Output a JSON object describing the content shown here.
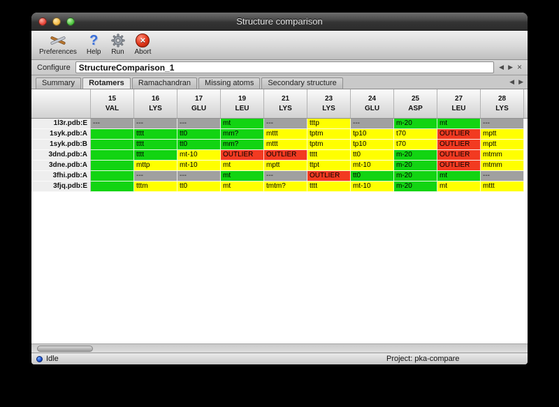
{
  "window": {
    "title": "Structure comparison"
  },
  "glyphs": {
    "help": "?",
    "abort": "×",
    "prev": "◀",
    "next": "▶",
    "close": "×"
  },
  "toolbar": {
    "items": [
      {
        "label": "Preferences",
        "icon": "preferences-tools-icon"
      },
      {
        "label": "Help",
        "icon": "help-question-icon"
      },
      {
        "label": "Run",
        "icon": "run-gear-icon"
      },
      {
        "label": "Abort",
        "icon": "abort-icon"
      }
    ]
  },
  "configure": {
    "label": "Configure",
    "value": "StructureComparison_1"
  },
  "tabs": {
    "items": [
      {
        "label": "Summary",
        "active": false
      },
      {
        "label": "Rotamers",
        "active": true
      },
      {
        "label": "Ramachandran",
        "active": false
      },
      {
        "label": "Missing atoms",
        "active": false
      },
      {
        "label": "Secondary structure",
        "active": false
      }
    ]
  },
  "table": {
    "columns": [
      {
        "num": "15",
        "res": "VAL"
      },
      {
        "num": "16",
        "res": "LYS"
      },
      {
        "num": "17",
        "res": "GLU"
      },
      {
        "num": "19",
        "res": "LEU"
      },
      {
        "num": "21",
        "res": "LYS"
      },
      {
        "num": "23",
        "res": "LYS"
      },
      {
        "num": "24",
        "res": "GLU"
      },
      {
        "num": "25",
        "res": "ASP"
      },
      {
        "num": "27",
        "res": "LEU"
      },
      {
        "num": "28",
        "res": "LYS"
      }
    ],
    "rows": [
      {
        "label": "1l3r.pdb:E",
        "cells": [
          {
            "text": "---",
            "color": "gray"
          },
          {
            "text": "---",
            "color": "gray"
          },
          {
            "text": "---",
            "color": "gray"
          },
          {
            "text": "mt",
            "color": "green"
          },
          {
            "text": "---",
            "color": "gray"
          },
          {
            "text": "tttp",
            "color": "yellow"
          },
          {
            "text": "---",
            "color": "gray"
          },
          {
            "text": "m-20",
            "color": "green"
          },
          {
            "text": "mt",
            "color": "green"
          },
          {
            "text": "---",
            "color": "gray"
          }
        ]
      },
      {
        "label": "1syk.pdb:A",
        "cells": [
          {
            "text": "",
            "color": "green"
          },
          {
            "text": "tttt",
            "color": "green"
          },
          {
            "text": "tt0",
            "color": "green"
          },
          {
            "text": "mm?",
            "color": "green"
          },
          {
            "text": "mttt",
            "color": "yellow"
          },
          {
            "text": "tptm",
            "color": "yellow"
          },
          {
            "text": "tp10",
            "color": "yellow"
          },
          {
            "text": "t70",
            "color": "yellow"
          },
          {
            "text": "OUTLIER",
            "color": "red"
          },
          {
            "text": "mptt",
            "color": "yellow"
          }
        ]
      },
      {
        "label": "1syk.pdb:B",
        "cells": [
          {
            "text": "",
            "color": "green"
          },
          {
            "text": "tttt",
            "color": "green"
          },
          {
            "text": "tt0",
            "color": "green"
          },
          {
            "text": "mm?",
            "color": "green"
          },
          {
            "text": "mttt",
            "color": "yellow"
          },
          {
            "text": "tptm",
            "color": "yellow"
          },
          {
            "text": "tp10",
            "color": "yellow"
          },
          {
            "text": "t70",
            "color": "yellow"
          },
          {
            "text": "OUTLIER",
            "color": "red"
          },
          {
            "text": "mptt",
            "color": "yellow"
          }
        ]
      },
      {
        "label": "3dnd.pdb:A",
        "cells": [
          {
            "text": "",
            "color": "green"
          },
          {
            "text": "tttt",
            "color": "green"
          },
          {
            "text": "mt-10",
            "color": "yellow"
          },
          {
            "text": "OUTLIER",
            "color": "red"
          },
          {
            "text": "OUTLIER",
            "color": "red"
          },
          {
            "text": "tttt",
            "color": "yellow"
          },
          {
            "text": "tt0",
            "color": "yellow"
          },
          {
            "text": "m-20",
            "color": "green"
          },
          {
            "text": "OUTLIER",
            "color": "red"
          },
          {
            "text": "mtmm",
            "color": "yellow"
          }
        ]
      },
      {
        "label": "3dne.pdb:A",
        "cells": [
          {
            "text": "",
            "color": "green"
          },
          {
            "text": "mttp",
            "color": "yellow"
          },
          {
            "text": "mt-10",
            "color": "yellow"
          },
          {
            "text": "mt",
            "color": "yellow"
          },
          {
            "text": "mptt",
            "color": "yellow"
          },
          {
            "text": "ttpt",
            "color": "yellow"
          },
          {
            "text": "mt-10",
            "color": "yellow"
          },
          {
            "text": "m-20",
            "color": "green"
          },
          {
            "text": "OUTLIER",
            "color": "red"
          },
          {
            "text": "mtmm",
            "color": "yellow"
          }
        ]
      },
      {
        "label": "3fhi.pdb:A",
        "cells": [
          {
            "text": "",
            "color": "green"
          },
          {
            "text": "---",
            "color": "gray"
          },
          {
            "text": "---",
            "color": "gray"
          },
          {
            "text": "mt",
            "color": "green"
          },
          {
            "text": "---",
            "color": "gray"
          },
          {
            "text": "OUTLIER",
            "color": "red"
          },
          {
            "text": "tt0",
            "color": "green"
          },
          {
            "text": "m-20",
            "color": "green"
          },
          {
            "text": "mt",
            "color": "green"
          },
          {
            "text": "---",
            "color": "gray"
          }
        ]
      },
      {
        "label": "3fjq.pdb:E",
        "cells": [
          {
            "text": "",
            "color": "green"
          },
          {
            "text": "tttm",
            "color": "yellow"
          },
          {
            "text": "tt0",
            "color": "yellow"
          },
          {
            "text": "mt",
            "color": "yellow"
          },
          {
            "text": "tmtm?",
            "color": "yellow"
          },
          {
            "text": "tttt",
            "color": "yellow"
          },
          {
            "text": "mt-10",
            "color": "yellow"
          },
          {
            "text": "m-20",
            "color": "green"
          },
          {
            "text": "mt",
            "color": "yellow"
          },
          {
            "text": "mttt",
            "color": "yellow"
          }
        ]
      }
    ]
  },
  "statusbar": {
    "state": "Idle",
    "project": "Project: pka-compare"
  },
  "colors": {
    "green": "#12d412",
    "yellow": "#ffff00",
    "gray": "#a0a0a0",
    "red": "#f23a21",
    "titlebar": "#3a3a3a",
    "abort_red": "#c02810",
    "help_blue": "#3a6fd8"
  }
}
